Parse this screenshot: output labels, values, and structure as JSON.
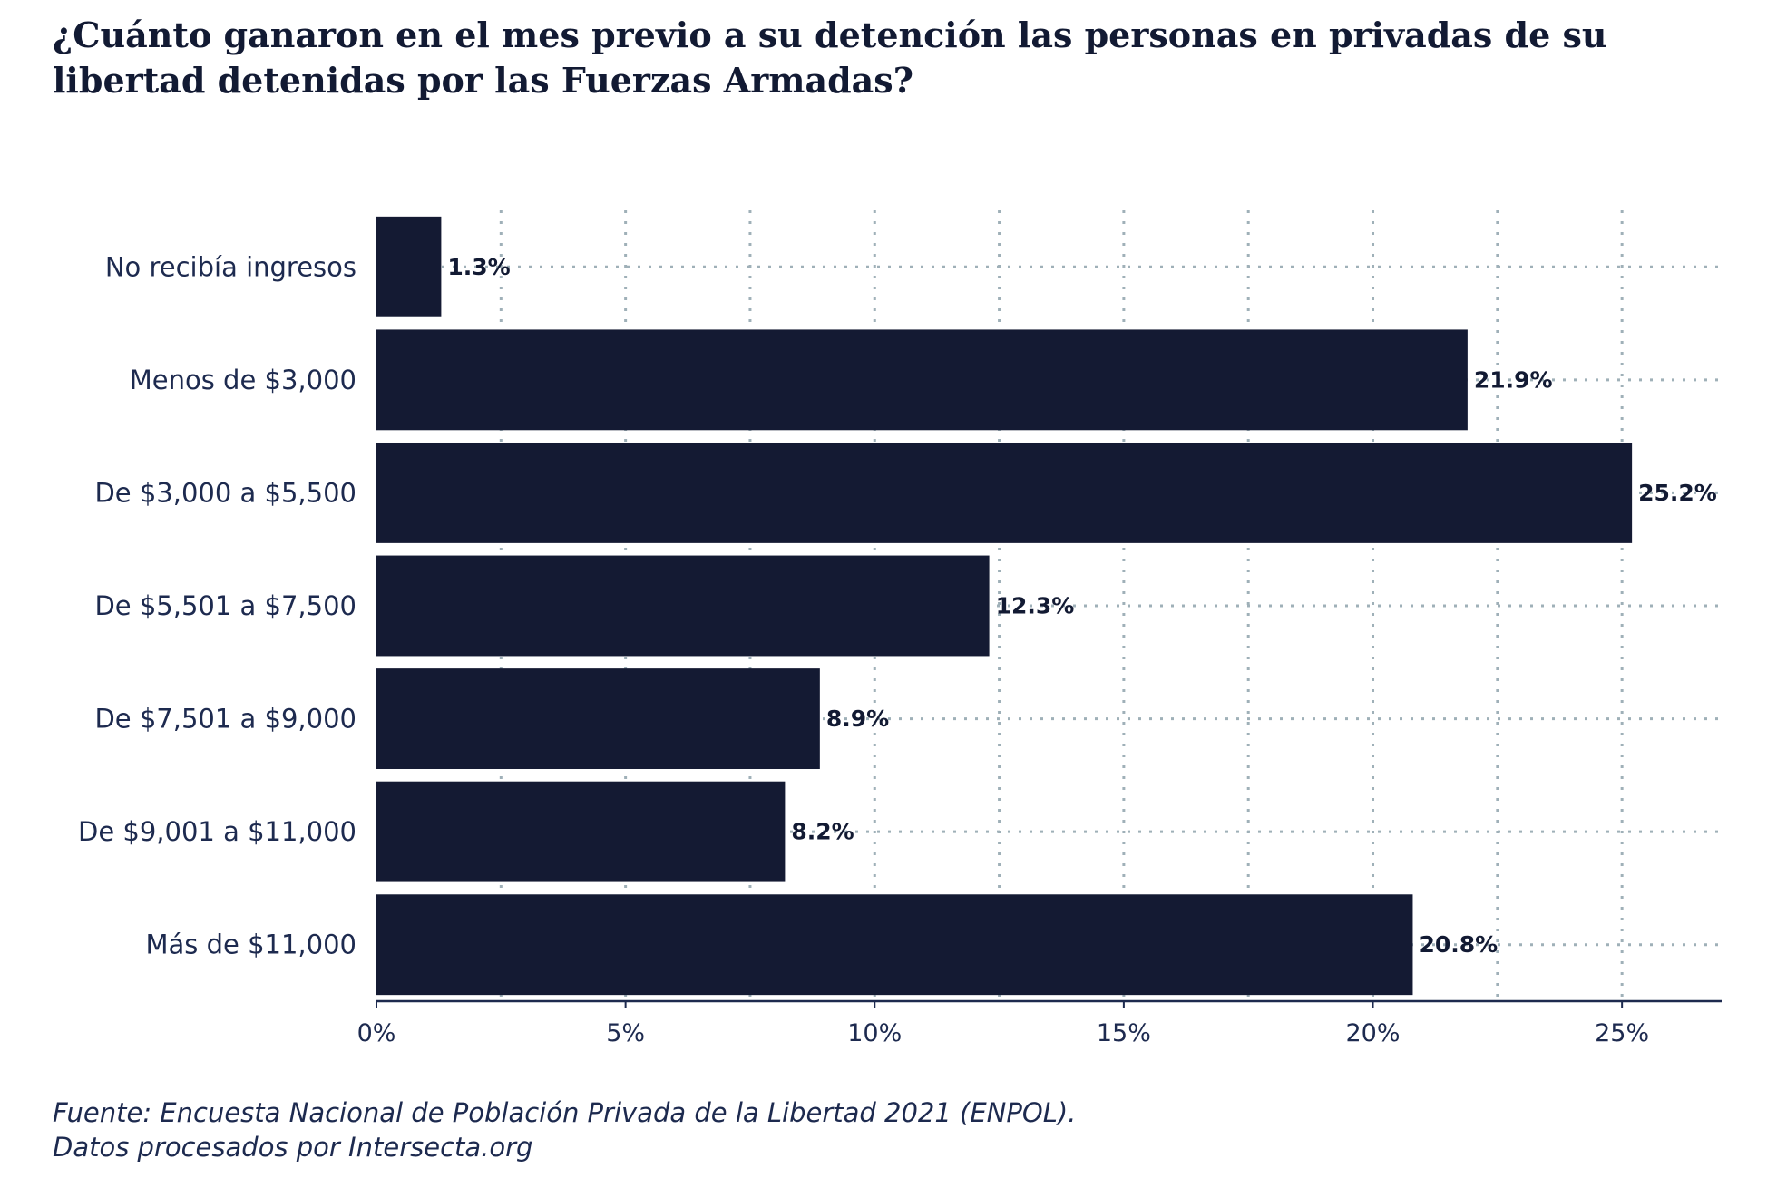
{
  "chart_data": {
    "type": "bar",
    "orientation": "horizontal",
    "title": "¿Cuánto ganaron en el mes previo a su detención las personas en privadas de su libertad detenidas por las Fuerzas Armadas?",
    "categories": [
      "No recibía ingresos",
      "Menos de $3,000",
      "De $3,000 a $5,500",
      "De $5,501 a $7,500",
      "De $7,501 a $9,000",
      "De $9,001 a $11,000",
      "Más de $11,000"
    ],
    "values": [
      1.3,
      21.9,
      25.2,
      12.3,
      8.9,
      8.2,
      20.8
    ],
    "data_labels": [
      "1.3%",
      "21.9%",
      "25.2%",
      "12.3%",
      "8.9%",
      "8.2%",
      "20.8%"
    ],
    "xlim": [
      0,
      27
    ],
    "x_ticks": [
      0,
      5,
      10,
      15,
      20,
      25
    ],
    "x_tick_labels": [
      "0%",
      "5%",
      "10%",
      "15%",
      "20%",
      "25%"
    ],
    "grid": true,
    "grid_style": "dotted",
    "legend": "none",
    "colors": {
      "bar": "#141a33",
      "grid": "#9fb0b8",
      "axis": "#1d2a4f",
      "text": "#1d2a4f"
    }
  },
  "source": {
    "line1": "Fuente: Encuesta Nacional de Población Privada de la Libertad 2021 (ENPOL).",
    "line2": "Datos procesados por Intersecta.org"
  }
}
